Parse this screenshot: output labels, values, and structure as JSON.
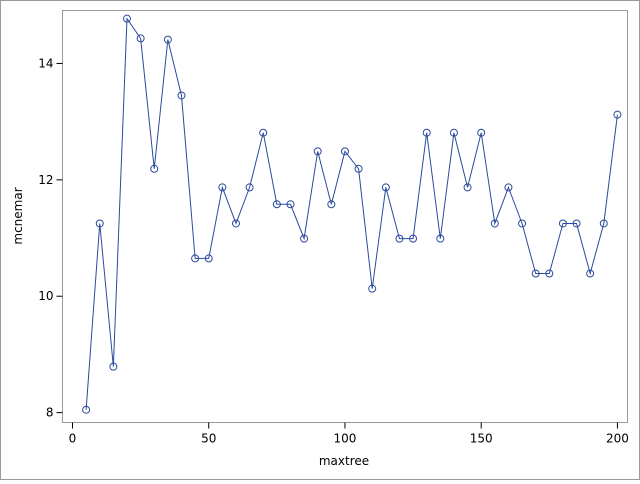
{
  "chart_data": {
    "type": "line",
    "x_label": "maxtree",
    "y_label": "mcnemar",
    "x": [
      5,
      10,
      15,
      20,
      25,
      30,
      35,
      40,
      45,
      50,
      55,
      60,
      65,
      70,
      75,
      80,
      85,
      90,
      95,
      100,
      105,
      110,
      115,
      120,
      125,
      130,
      135,
      140,
      145,
      150,
      155,
      160,
      165,
      170,
      175,
      180,
      185,
      190,
      195,
      200
    ],
    "series": [
      {
        "color": "#2b4a9c",
        "values": [
          8.05,
          11.25,
          8.79,
          14.77,
          14.43,
          12.19,
          14.41,
          13.45,
          10.65,
          10.65,
          11.87,
          11.25,
          11.87,
          12.81,
          11.58,
          11.58,
          10.99,
          12.49,
          11.58,
          12.49,
          12.19,
          10.13,
          11.87,
          10.99,
          10.99,
          12.81,
          10.99,
          12.81,
          11.87,
          12.81,
          11.25,
          11.87,
          11.25,
          10.39,
          10.39,
          11.25,
          11.25,
          10.39,
          11.25,
          13.12
        ]
      }
    ],
    "xlim": [
      -3.67,
      203.7
    ],
    "ylim": [
      7.83,
      14.91
    ],
    "xticks": [
      0,
      50,
      100,
      150,
      200
    ],
    "yticks": [
      8,
      10,
      12,
      14
    ]
  }
}
